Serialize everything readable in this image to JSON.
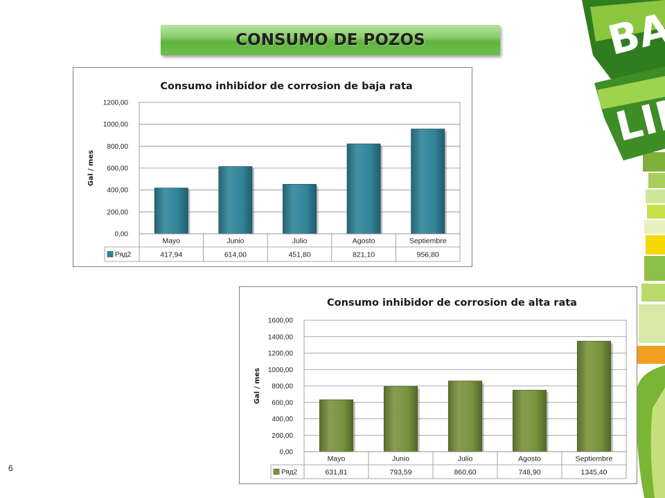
{
  "slide": {
    "title": "CONSUMO DE POZOS",
    "page_number": "6",
    "logo_text": "BARRA LINE"
  },
  "colors": {
    "banner_green": "#6fbe4d",
    "series_blue": "#31849b",
    "series_green": "#77933c",
    "deco_green": "#5a9e2d",
    "deco_yellow": "#f5d800",
    "deco_orange": "#f0a020"
  },
  "chart_data": [
    {
      "type": "bar",
      "title": "Consumo inhibidor de corrosion de baja rata",
      "xlabel": "",
      "ylabel": "Gal / mes",
      "categories": [
        "Mayo",
        "Junio",
        "Julio",
        "Agosto",
        "Septiembre"
      ],
      "series": [
        {
          "name": "Ряд2",
          "values": [
            417.94,
            614.0,
            451.8,
            821.1,
            956.8
          ]
        }
      ],
      "table_values": [
        "417,94",
        "614,00",
        "451,80",
        "821,10",
        "956,80"
      ],
      "ylim": [
        0,
        1200
      ],
      "yticks": [
        "0,00",
        "200,00",
        "400,00",
        "600,00",
        "800,00",
        "1000,00",
        "1200,00"
      ],
      "color": "#31849b",
      "grid": true,
      "legend": "data-table"
    },
    {
      "type": "bar",
      "title": "Consumo inhibidor de corrosion de alta rata",
      "xlabel": "",
      "ylabel": "Gal / mes",
      "categories": [
        "Mayo",
        "Junio",
        "Julio",
        "Agosto",
        "Septiembre"
      ],
      "series": [
        {
          "name": "Ряд2",
          "values": [
            631.81,
            793.59,
            860.6,
            748.9,
            1345.4
          ]
        }
      ],
      "table_values": [
        "631,81",
        "793,59",
        "860,60",
        "748,90",
        "1345,40"
      ],
      "ylim": [
        0,
        1600
      ],
      "yticks": [
        "0,00",
        "200,00",
        "400,00",
        "600,00",
        "800,00",
        "1000,00",
        "1200,00",
        "1400,00",
        "1600,00"
      ],
      "color": "#77933c",
      "grid": true,
      "legend": "data-table"
    }
  ]
}
